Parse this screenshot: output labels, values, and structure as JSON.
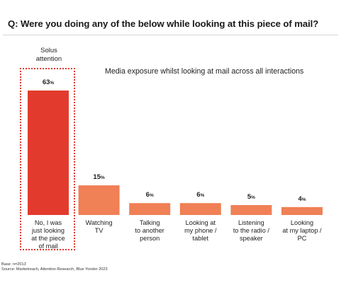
{
  "title": "Q: Were you doing any of the below while looking at this piece of mail?",
  "chart_data": {
    "type": "bar",
    "title": "Q: Were you doing any of the below while looking at this piece of mail?",
    "subtitle": "Media exposure whilst looking at mail across all interactions",
    "categories": [
      [
        "No, I was",
        "just looking",
        "at the piece",
        "of mail"
      ],
      [
        "Watching",
        "TV"
      ],
      [
        "Talking",
        "to another",
        "person"
      ],
      [
        "Looking at",
        "my phone /",
        "tablet"
      ],
      [
        "Listening",
        "to the radio /",
        "speaker"
      ],
      [
        "Looking",
        "at my laptop /",
        "PC"
      ]
    ],
    "values": [
      63,
      15,
      6,
      6,
      5,
      4
    ],
    "value_suffix": "%",
    "ylim": [
      0,
      63
    ],
    "grid": false,
    "highlight": {
      "index": 0,
      "label": "Solus attention",
      "color": "#e23b2e"
    },
    "bar_color": "#f08055"
  },
  "solus_label_lines": [
    "Solus",
    "attention"
  ],
  "footer": {
    "base": "Base: n=2013",
    "source": "Source: Marketreach, Attention Research, Blue Yonder 2023"
  }
}
